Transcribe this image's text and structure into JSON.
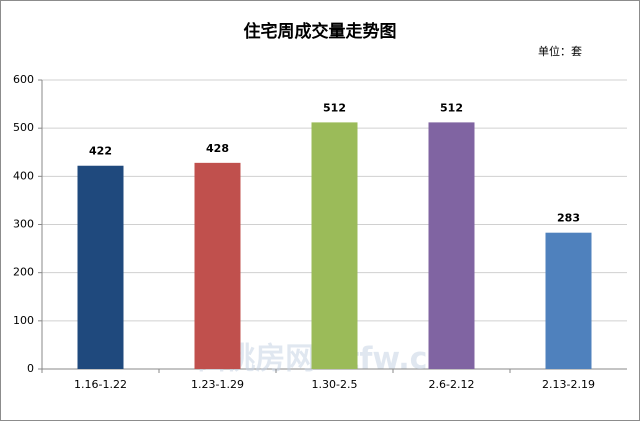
{
  "chart_data": {
    "type": "bar",
    "title": "住宅周成交量走势图",
    "unit_label": "单位：套",
    "categories": [
      "1.16-1.22",
      "1.23-1.29",
      "1.30-2.5",
      "2.6-2.12",
      "2.13-2.19"
    ],
    "values": [
      422,
      428,
      512,
      512,
      283
    ],
    "colors": [
      "#1f497d",
      "#c0504d",
      "#9bbb59",
      "#8064a2",
      "#4f81bd"
    ],
    "ylim": [
      0,
      600
    ],
    "yticks": [
      0,
      100,
      200,
      300,
      400,
      500,
      600
    ],
    "grid": true,
    "watermark": "仙桃房网 xtfw.cn"
  }
}
